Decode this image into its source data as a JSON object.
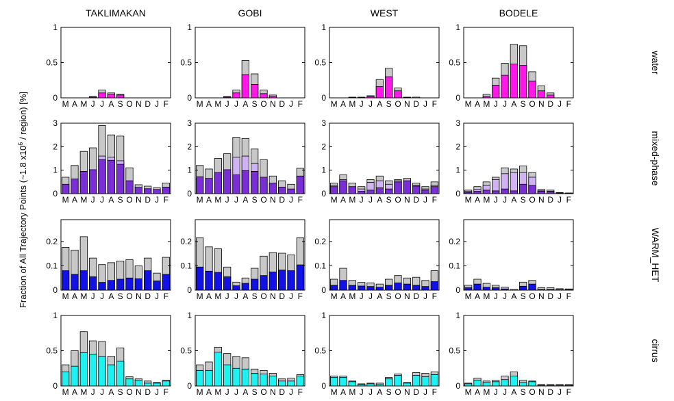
{
  "figure": {
    "ylabel_prefix": "Fraction of All Trajectory Points (~1.8 x10",
    "ylabel_exp": "6",
    "ylabel_suffix": " / region) [%]"
  },
  "chart_data": {
    "type": "bar",
    "stacked": true,
    "months": [
      "M",
      "A",
      "M",
      "J",
      "J",
      "A",
      "S",
      "O",
      "N",
      "D",
      "J",
      "F"
    ],
    "columns": [
      "TAKLIMAKAN",
      "GOBI",
      "WEST",
      "BODELE"
    ],
    "rows": [
      {
        "label": "water",
        "ylim": [
          0,
          1
        ],
        "yticks": [
          "0",
          "0.5",
          "1"
        ],
        "colors": {
          "main": "#ff18e8",
          "mid": "#ff18e8",
          "top": "#c8c8c8"
        }
      },
      {
        "label": "mixed-phase",
        "ylim": [
          0,
          3
        ],
        "yticks": [
          "0",
          "1",
          "2",
          "3"
        ],
        "colors": {
          "main": "#7a2fd6",
          "mid": "#cfb3f2",
          "top": "#c8c8c8"
        }
      },
      {
        "label": "WARM_HET",
        "ylim": [
          0,
          0.29
        ],
        "yticks": [
          "0",
          "0.1",
          "0.2"
        ],
        "colors": {
          "main": "#1212e6",
          "mid": "#1212e6",
          "top": "#c8c8c8"
        }
      },
      {
        "label": "cirrus",
        "ylim": [
          0,
          1
        ],
        "yticks": [
          "0",
          "0.5",
          "1"
        ],
        "colors": {
          "main": "#1ff0f0",
          "mid": "#1ff0f0",
          "top": "#c8c8c8"
        }
      }
    ],
    "panels": [
      {
        "row": 0,
        "col": 0,
        "main": [
          0,
          0,
          0,
          0.01,
          0.07,
          0.05,
          0.04,
          0,
          0,
          0,
          0,
          0
        ],
        "mid": [
          0,
          0,
          0,
          0,
          0,
          0,
          0,
          0,
          0,
          0,
          0,
          0
        ],
        "total": [
          0,
          0,
          0,
          0.02,
          0.11,
          0.07,
          0.05,
          0,
          0,
          0,
          0,
          0
        ]
      },
      {
        "row": 0,
        "col": 1,
        "main": [
          0,
          0,
          0,
          0.01,
          0.07,
          0.33,
          0.19,
          0.06,
          0.02,
          0,
          0,
          0
        ],
        "mid": [
          0,
          0,
          0,
          0,
          0,
          0,
          0,
          0,
          0,
          0,
          0,
          0
        ],
        "total": [
          0,
          0,
          0,
          0.02,
          0.11,
          0.53,
          0.34,
          0.11,
          0.04,
          0,
          0,
          0
        ]
      },
      {
        "row": 0,
        "col": 2,
        "main": [
          0,
          0,
          0.005,
          0.005,
          0.02,
          0.16,
          0.3,
          0.1,
          0.005,
          0,
          0,
          0
        ],
        "mid": [
          0,
          0,
          0,
          0,
          0,
          0,
          0,
          0,
          0,
          0,
          0,
          0
        ],
        "total": [
          0,
          0,
          0.01,
          0.01,
          0.03,
          0.26,
          0.42,
          0.14,
          0.01,
          0.01,
          0,
          0
        ]
      },
      {
        "row": 0,
        "col": 3,
        "main": [
          0,
          0,
          0.02,
          0.18,
          0.32,
          0.48,
          0.46,
          0.24,
          0.1,
          0.04,
          0,
          0
        ],
        "mid": [
          0,
          0,
          0,
          0,
          0,
          0,
          0,
          0,
          0,
          0,
          0,
          0
        ],
        "total": [
          0,
          0,
          0.05,
          0.28,
          0.49,
          0.76,
          0.74,
          0.37,
          0.17,
          0.07,
          0,
          0
        ]
      },
      {
        "row": 1,
        "col": 0,
        "main": [
          0.4,
          0.63,
          0.95,
          1.02,
          1.45,
          1.42,
          1.25,
          0.55,
          0.27,
          0.21,
          0.18,
          0.28
        ],
        "mid": [
          0.4,
          0.63,
          0.95,
          1.02,
          1.6,
          1.55,
          1.4,
          0.55,
          0.27,
          0.21,
          0.18,
          0.28
        ],
        "total": [
          0.7,
          1.2,
          1.8,
          1.95,
          2.9,
          2.5,
          2.45,
          1.1,
          0.38,
          0.32,
          0.25,
          0.45
        ]
      },
      {
        "row": 1,
        "col": 1,
        "main": [
          0.72,
          0.65,
          0.9,
          1.02,
          0.8,
          0.98,
          0.95,
          0.7,
          0.45,
          0.28,
          0.2,
          0.75
        ],
        "mid": [
          0.72,
          0.65,
          0.9,
          1.02,
          1.55,
          1.6,
          1.3,
          0.7,
          0.45,
          0.28,
          0.2,
          0.75
        ],
        "total": [
          1.2,
          1.05,
          1.5,
          1.7,
          2.4,
          2.35,
          1.9,
          1.45,
          0.75,
          0.55,
          0.4,
          1.08
        ]
      },
      {
        "row": 1,
        "col": 2,
        "main": [
          0.3,
          0.55,
          0.3,
          0.1,
          0.15,
          0.25,
          0.2,
          0.5,
          0.55,
          0.32,
          0.15,
          0.3
        ],
        "mid": [
          0.35,
          0.6,
          0.3,
          0.2,
          0.48,
          0.55,
          0.4,
          0.55,
          0.55,
          0.35,
          0.2,
          0.35
        ],
        "total": [
          0.45,
          0.8,
          0.45,
          0.3,
          0.6,
          0.75,
          0.55,
          0.6,
          0.65,
          0.45,
          0.3,
          0.5
        ]
      },
      {
        "row": 1,
        "col": 3,
        "main": [
          0.05,
          0.1,
          0.15,
          0.12,
          0.2,
          0.12,
          0.4,
          0.35,
          0.1,
          0.08,
          0.02,
          0.01
        ],
        "mid": [
          0.1,
          0.18,
          0.35,
          0.6,
          0.85,
          0.9,
          0.9,
          0.7,
          0.12,
          0.1,
          0.03,
          0.02
        ],
        "total": [
          0.15,
          0.3,
          0.5,
          0.7,
          1.1,
          1.05,
          1.18,
          0.9,
          0.18,
          0.15,
          0.05,
          0.03
        ]
      },
      {
        "row": 2,
        "col": 0,
        "main": [
          0.08,
          0.065,
          0.08,
          0.055,
          0.032,
          0.04,
          0.045,
          0.05,
          0.047,
          0.08,
          0.038,
          0.065
        ],
        "mid": [
          0.08,
          0.065,
          0.08,
          0.055,
          0.032,
          0.04,
          0.045,
          0.05,
          0.047,
          0.08,
          0.038,
          0.065
        ],
        "total": [
          0.176,
          0.165,
          0.22,
          0.132,
          0.105,
          0.113,
          0.12,
          0.125,
          0.1,
          0.132,
          0.07,
          0.135
        ]
      },
      {
        "row": 2,
        "col": 1,
        "main": [
          0.095,
          0.078,
          0.073,
          0.055,
          0.018,
          0.028,
          0.045,
          0.06,
          0.075,
          0.083,
          0.08,
          0.104
        ],
        "mid": [
          0.095,
          0.078,
          0.073,
          0.055,
          0.018,
          0.028,
          0.045,
          0.06,
          0.075,
          0.083,
          0.08,
          0.104
        ],
        "total": [
          0.215,
          0.178,
          0.17,
          0.095,
          0.033,
          0.05,
          0.09,
          0.14,
          0.155,
          0.152,
          0.145,
          0.215
        ]
      },
      {
        "row": 2,
        "col": 2,
        "main": [
          0.02,
          0.04,
          0.02,
          0.017,
          0.015,
          0.012,
          0.02,
          0.03,
          0.025,
          0.02,
          0.015,
          0.035
        ],
        "mid": [
          0.02,
          0.04,
          0.02,
          0.017,
          0.015,
          0.012,
          0.02,
          0.03,
          0.025,
          0.02,
          0.015,
          0.035
        ],
        "total": [
          0.045,
          0.09,
          0.04,
          0.032,
          0.03,
          0.025,
          0.045,
          0.06,
          0.05,
          0.053,
          0.04,
          0.08
        ]
      },
      {
        "row": 2,
        "col": 3,
        "main": [
          0.01,
          0.025,
          0.012,
          0.01,
          0.005,
          0,
          0.016,
          0.025,
          0.003,
          0.003,
          0.002,
          0.002
        ],
        "mid": [
          0.01,
          0.025,
          0.012,
          0.01,
          0.005,
          0,
          0.016,
          0.025,
          0.003,
          0.003,
          0.002,
          0.002
        ],
        "total": [
          0.02,
          0.045,
          0.028,
          0.02,
          0.012,
          0.003,
          0.033,
          0.04,
          0.01,
          0.01,
          0.006,
          0.005
        ]
      },
      {
        "row": 3,
        "col": 0,
        "main": [
          0.2,
          0.28,
          0.47,
          0.45,
          0.42,
          0.3,
          0.35,
          0.1,
          0.08,
          0.04,
          0.04,
          0.07
        ],
        "mid": [
          0.2,
          0.28,
          0.47,
          0.45,
          0.42,
          0.3,
          0.35,
          0.1,
          0.08,
          0.04,
          0.04,
          0.07
        ],
        "total": [
          0.3,
          0.5,
          0.77,
          0.64,
          0.63,
          0.42,
          0.54,
          0.13,
          0.1,
          0.07,
          0.05,
          0.08
        ]
      },
      {
        "row": 3,
        "col": 1,
        "main": [
          0.22,
          0.22,
          0.48,
          0.3,
          0.25,
          0.24,
          0.18,
          0.17,
          0.14,
          0.07,
          0.07,
          0.14
        ],
        "mid": [
          0.22,
          0.22,
          0.48,
          0.3,
          0.25,
          0.24,
          0.18,
          0.17,
          0.14,
          0.07,
          0.07,
          0.14
        ],
        "total": [
          0.3,
          0.34,
          0.55,
          0.46,
          0.42,
          0.4,
          0.24,
          0.22,
          0.18,
          0.1,
          0.11,
          0.16
        ]
      },
      {
        "row": 3,
        "col": 2,
        "main": [
          0.12,
          0.12,
          0.06,
          0.02,
          0.03,
          0.02,
          0.1,
          0.15,
          0.04,
          0.15,
          0.13,
          0.16
        ],
        "mid": [
          0.12,
          0.12,
          0.06,
          0.02,
          0.03,
          0.02,
          0.1,
          0.15,
          0.04,
          0.15,
          0.13,
          0.16
        ],
        "total": [
          0.14,
          0.14,
          0.07,
          0.03,
          0.04,
          0.04,
          0.12,
          0.17,
          0.05,
          0.19,
          0.18,
          0.2
        ]
      },
      {
        "row": 3,
        "col": 3,
        "main": [
          0.03,
          0.08,
          0.05,
          0.06,
          0.09,
          0.14,
          0.05,
          0.06,
          0.01,
          0.01,
          0.01,
          0.01
        ],
        "mid": [
          0.03,
          0.08,
          0.05,
          0.06,
          0.09,
          0.14,
          0.05,
          0.06,
          0.01,
          0.01,
          0.01,
          0.01
        ],
        "total": [
          0.04,
          0.11,
          0.07,
          0.08,
          0.14,
          0.2,
          0.08,
          0.07,
          0.02,
          0.02,
          0.02,
          0.02
        ]
      }
    ]
  }
}
